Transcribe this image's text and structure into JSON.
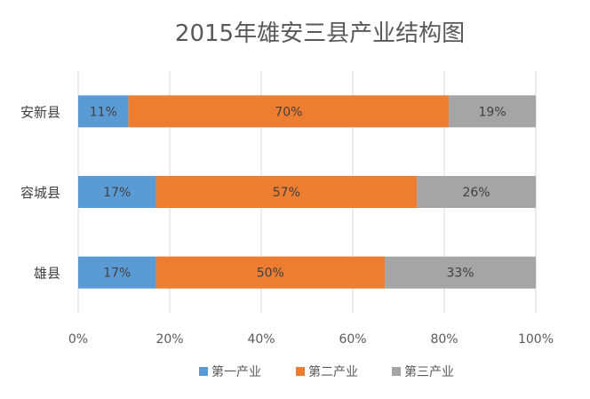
{
  "chart_data": {
    "type": "bar",
    "orientation": "horizontal",
    "stacked": "percent",
    "title": "2015年雄安三县产业结构图",
    "categories": [
      "安新县",
      "容城县",
      "雄县"
    ],
    "series": [
      {
        "name": "第一产业",
        "color": "#5b9bd5",
        "values": [
          11,
          17,
          17
        ],
        "labels": [
          "11%",
          "17%",
          "17%"
        ]
      },
      {
        "name": "第二产业",
        "color": "#ed7d31",
        "values": [
          70,
          57,
          50
        ],
        "labels": [
          "70%",
          "57%",
          "50%"
        ]
      },
      {
        "name": "第三产业",
        "color": "#a5a5a5",
        "values": [
          19,
          26,
          33
        ],
        "labels": [
          "19%",
          "26%",
          "33%"
        ]
      }
    ],
    "x_ticks": [
      "0%",
      "20%",
      "40%",
      "60%",
      "80%",
      "100%"
    ],
    "xlim": [
      0,
      100
    ],
    "grid": true,
    "legend_position": "bottom"
  }
}
